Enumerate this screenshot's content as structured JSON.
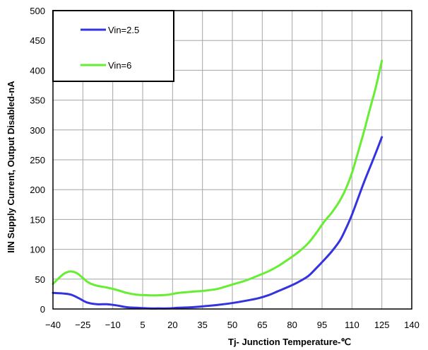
{
  "chart_data": {
    "type": "line",
    "title": "",
    "xlabel": "Tj- Junction Temperature-℃",
    "ylabel": "IIN Supply Current, Output Disabled-nA",
    "xlim": [
      -40,
      140
    ],
    "ylim": [
      0,
      500
    ],
    "x_ticks": [
      -40,
      -25,
      -10,
      5,
      20,
      35,
      50,
      65,
      80,
      95,
      110,
      125,
      140
    ],
    "x_tick_labels": [
      "−40",
      "−25",
      "−10",
      "5",
      "20",
      "35",
      "50",
      "65",
      "80",
      "95",
      "110",
      "125",
      "140"
    ],
    "y_ticks": [
      0,
      50,
      100,
      150,
      200,
      250,
      300,
      350,
      400,
      450,
      500
    ],
    "grid": true,
    "legend_position": "top-left",
    "series": [
      {
        "name": "Vin=2.5",
        "color": "#3333e0",
        "points": [
          [
            -40,
            27
          ],
          [
            -35,
            26
          ],
          [
            -31,
            24
          ],
          [
            -27,
            18
          ],
          [
            -23,
            11
          ],
          [
            -18,
            8
          ],
          [
            -13,
            8
          ],
          [
            -8,
            6
          ],
          [
            -3,
            3
          ],
          [
            2,
            2
          ],
          [
            8,
            1
          ],
          [
            13,
            1
          ],
          [
            18,
            1
          ],
          [
            23,
            2
          ],
          [
            30,
            3
          ],
          [
            37,
            5
          ],
          [
            43,
            7
          ],
          [
            50,
            10
          ],
          [
            57,
            14
          ],
          [
            63,
            18
          ],
          [
            68,
            23
          ],
          [
            73,
            30
          ],
          [
            78,
            37
          ],
          [
            83,
            45
          ],
          [
            88,
            55
          ],
          [
            92,
            68
          ],
          [
            96,
            82
          ],
          [
            100,
            97
          ],
          [
            104,
            115
          ],
          [
            107,
            135
          ],
          [
            110,
            158
          ],
          [
            113,
            185
          ],
          [
            116,
            212
          ],
          [
            119,
            237
          ],
          [
            122,
            262
          ],
          [
            125,
            288
          ]
        ]
      },
      {
        "name": "Vin=6",
        "color": "#66ee33",
        "points": [
          [
            -40,
            42
          ],
          [
            -37,
            52
          ],
          [
            -34,
            60
          ],
          [
            -31,
            63
          ],
          [
            -28,
            60
          ],
          [
            -25,
            52
          ],
          [
            -22,
            44
          ],
          [
            -18,
            39
          ],
          [
            -13,
            36
          ],
          [
            -8,
            32
          ],
          [
            -3,
            27
          ],
          [
            2,
            24
          ],
          [
            8,
            23
          ],
          [
            13,
            23
          ],
          [
            18,
            24
          ],
          [
            23,
            27
          ],
          [
            30,
            29
          ],
          [
            37,
            31
          ],
          [
            43,
            34
          ],
          [
            50,
            41
          ],
          [
            57,
            48
          ],
          [
            63,
            56
          ],
          [
            68,
            63
          ],
          [
            73,
            72
          ],
          [
            78,
            83
          ],
          [
            83,
            95
          ],
          [
            88,
            110
          ],
          [
            92,
            127
          ],
          [
            96,
            146
          ],
          [
            100,
            162
          ],
          [
            104,
            182
          ],
          [
            107,
            202
          ],
          [
            110,
            228
          ],
          [
            113,
            262
          ],
          [
            116,
            297
          ],
          [
            119,
            335
          ],
          [
            122,
            372
          ],
          [
            125,
            416
          ]
        ]
      }
    ]
  }
}
